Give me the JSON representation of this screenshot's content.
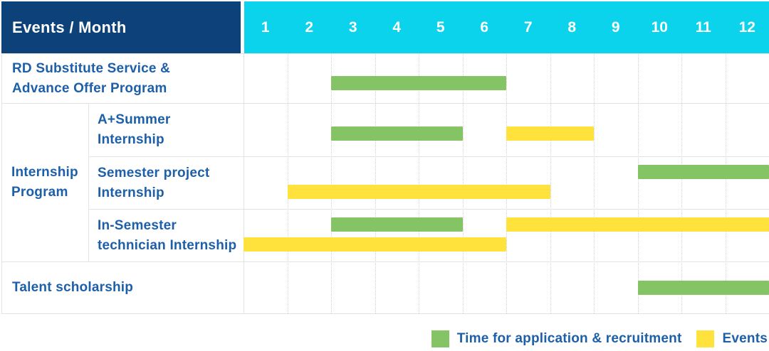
{
  "colors": {
    "header_navy": "#0d4179",
    "header_cyan": "#0bd3ec",
    "bar_green": "#85c464",
    "bar_yellow": "#ffe23c",
    "label_blue": "#1d5fa8",
    "grid_line": "#e3e3e3",
    "grid_dotted": "#d5d5d5",
    "header_text": "#ffffff"
  },
  "table": {
    "corner_label": "Events / Month",
    "months": [
      "1",
      "2",
      "3",
      "4",
      "5",
      "6",
      "7",
      "8",
      "9",
      "10",
      "11",
      "12"
    ],
    "group_cell": {
      "lines": [
        "Internship",
        "Program"
      ]
    },
    "rows": [
      {
        "lines": [
          "RD Substitute Service &",
          "Advance Offer Program"
        ],
        "grouped": false
      },
      {
        "lines": [
          "A+Summer",
          "Internship"
        ],
        "grouped": true
      },
      {
        "lines": [
          "Semester project",
          "Internship"
        ],
        "grouped": true
      },
      {
        "lines": [
          "In-Semester",
          "technician Internship"
        ],
        "grouped": true
      },
      {
        "lines": [
          "Talent scholarship"
        ],
        "grouped": false
      }
    ]
  },
  "legend": {
    "items": [
      {
        "swatch": "green",
        "label": "Time for application & recruitment"
      },
      {
        "swatch": "yellow",
        "label": "Events"
      }
    ]
  },
  "chart_data": {
    "type": "bar",
    "subtype": "gantt-schedule",
    "title": "",
    "x_axis": {
      "label": "Month",
      "ticks": [
        1,
        2,
        3,
        4,
        5,
        6,
        7,
        8,
        9,
        10,
        11,
        12
      ],
      "range": [
        1,
        12
      ]
    },
    "legend_entries": [
      "Time for application & recruitment",
      "Events"
    ],
    "grid": true,
    "rows": [
      {
        "group": null,
        "label": "RD Substitute Service & Advance Offer Program",
        "bars": [
          {
            "series": "Time for application & recruitment",
            "color": "green",
            "start_month": 3,
            "end_month": 6,
            "track": "mid"
          }
        ]
      },
      {
        "group": "Internship Program",
        "label": "A+Summer Internship",
        "bars": [
          {
            "series": "Time for application & recruitment",
            "color": "green",
            "start_month": 3,
            "end_month": 5,
            "track": "mid"
          },
          {
            "series": "Events",
            "color": "yellow",
            "start_month": 7,
            "end_month": 8,
            "track": "mid"
          }
        ]
      },
      {
        "group": "Internship Program",
        "label": "Semester project Internship",
        "bars": [
          {
            "series": "Time for application & recruitment",
            "color": "green",
            "start_month": 10,
            "end_month": 12,
            "track": "top"
          },
          {
            "series": "Events",
            "color": "yellow",
            "start_month": 2,
            "end_month": 7,
            "track": "bottom"
          }
        ]
      },
      {
        "group": "Internship Program",
        "label": "In-Semester technician Internship",
        "bars": [
          {
            "series": "Time for application & recruitment",
            "color": "green",
            "start_month": 3,
            "end_month": 5,
            "track": "top"
          },
          {
            "series": "Events",
            "color": "yellow",
            "start_month": 7,
            "end_month": 12,
            "track": "top"
          },
          {
            "series": "Events",
            "color": "yellow",
            "start_month": 1,
            "end_month": 6,
            "track": "bottom"
          }
        ]
      },
      {
        "group": null,
        "label": "Talent scholarship",
        "bars": [
          {
            "series": "Time for application & recruitment",
            "color": "green",
            "start_month": 10,
            "end_month": 12,
            "track": "mid"
          }
        ]
      }
    ]
  }
}
